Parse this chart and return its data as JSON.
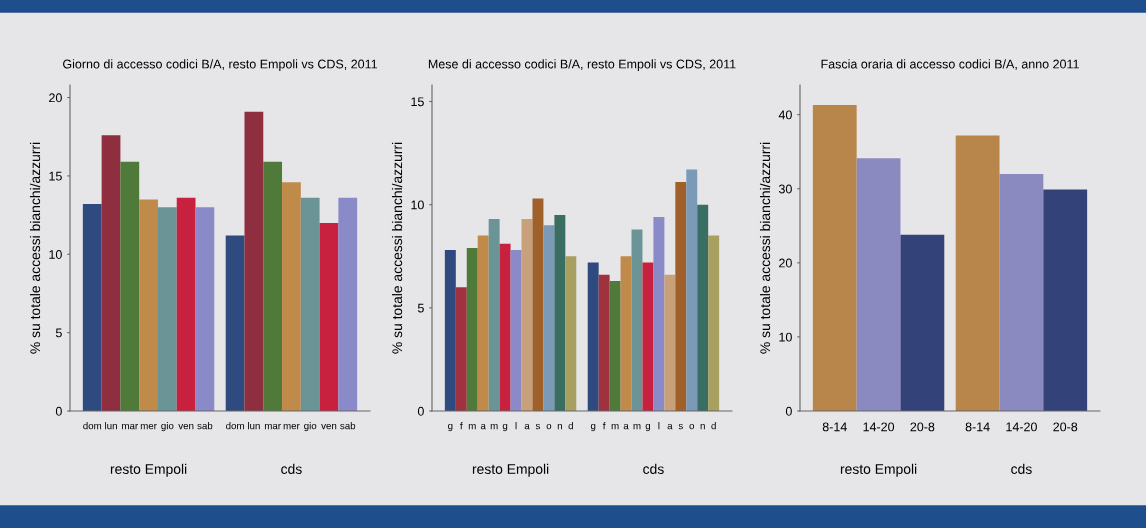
{
  "chart_data": [
    {
      "type": "bar",
      "title": "Giorno di accesso codici B/A, resto Empoli vs CDS, 2011",
      "ylabel": "% su totale accessi bianchi/azzurri",
      "categories": [
        "resto Empoli",
        "cds"
      ],
      "ylim": [
        0,
        20.8
      ],
      "yticks": [
        0,
        5,
        10,
        15,
        20
      ],
      "grid": false,
      "legend": false,
      "series": [
        {
          "name": "dom",
          "color": "#2e4a7e",
          "values": [
            13.2,
            11.2
          ]
        },
        {
          "name": "lun",
          "color": "#8e2e3e",
          "values": [
            17.6,
            19.1
          ]
        },
        {
          "name": "mar",
          "color": "#4f7a3a",
          "values": [
            15.9,
            15.9
          ]
        },
        {
          "name": "mer",
          "color": "#c08a4a",
          "values": [
            13.5,
            14.6
          ]
        },
        {
          "name": "gio",
          "color": "#6a9496",
          "values": [
            13.0,
            13.6
          ]
        },
        {
          "name": "ven",
          "color": "#c8203f",
          "values": [
            13.6,
            12.0
          ]
        },
        {
          "name": "sab",
          "color": "#8a8ac8",
          "values": [
            13.0,
            13.6
          ]
        }
      ]
    },
    {
      "type": "bar",
      "title": "Mese di accesso codici B/A, resto Empoli vs CDS, 2011",
      "ylabel": "% su totale accessi bianchi/azzurri",
      "categories": [
        "resto Empoli",
        "cds"
      ],
      "ylim": [
        0,
        15.8
      ],
      "yticks": [
        0,
        5,
        10,
        15
      ],
      "grid": false,
      "legend": false,
      "series": [
        {
          "name": "g",
          "color": "#2e4a7e",
          "values": [
            7.8,
            7.2
          ]
        },
        {
          "name": "f",
          "color": "#a0323f",
          "values": [
            6.0,
            6.6
          ]
        },
        {
          "name": "m",
          "color": "#4f7a3a",
          "values": [
            7.9,
            6.3
          ]
        },
        {
          "name": "a",
          "color": "#c08a4a",
          "values": [
            8.5,
            7.5
          ]
        },
        {
          "name": "m",
          "color": "#6a9496",
          "values": [
            9.3,
            8.8
          ]
        },
        {
          "name": "g",
          "color": "#c8203f",
          "values": [
            8.1,
            7.2
          ]
        },
        {
          "name": "l",
          "color": "#8a8ac8",
          "values": [
            7.8,
            9.4
          ]
        },
        {
          "name": "a",
          "color": "#c8a07a",
          "values": [
            9.3,
            6.6
          ]
        },
        {
          "name": "s",
          "color": "#a0602a",
          "values": [
            10.3,
            11.1
          ]
        },
        {
          "name": "o",
          "color": "#7a9ab8",
          "values": [
            9.0,
            11.7
          ]
        },
        {
          "name": "n",
          "color": "#3a6e62",
          "values": [
            9.5,
            10.0
          ]
        },
        {
          "name": "d",
          "color": "#a8a060",
          "values": [
            7.5,
            8.5
          ]
        }
      ]
    },
    {
      "type": "bar",
      "title": "Fascia oraria di accesso codici B/A, anno 2011",
      "ylabel": "% su totale accessi bianchi/azzurri",
      "categories": [
        "resto Empoli",
        "cds"
      ],
      "ylim": [
        0,
        44
      ],
      "yticks": [
        0,
        10,
        20,
        30,
        40
      ],
      "grid": false,
      "legend": false,
      "series": [
        {
          "name": "8-14",
          "color": "#b8854a",
          "values": [
            41.3,
            37.2
          ]
        },
        {
          "name": "14-20",
          "color": "#8a8ac0",
          "values": [
            34.1,
            32.0
          ]
        },
        {
          "name": "20-8",
          "color": "#34427a",
          "values": [
            23.8,
            29.9
          ]
        }
      ]
    }
  ]
}
